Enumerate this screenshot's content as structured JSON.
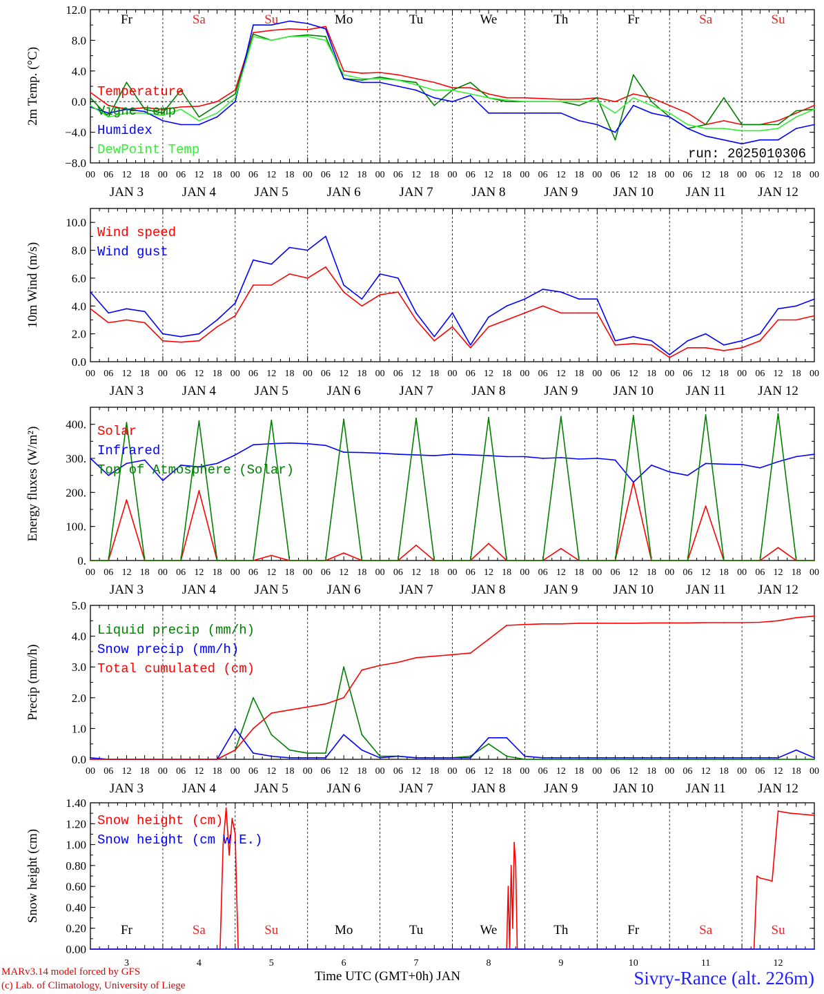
{
  "footer": {
    "model_line": "MARv3.14 model forced by GFS",
    "credit_line": "(c) Lab. of Climatology, University of Liege",
    "xlabel": "Time UTC (GMT+0h) JAN",
    "station": "Sivry-Rance (alt. 226m)"
  },
  "colors": {
    "red": "#ff0000",
    "green": "#008000",
    "blue": "#0000ff",
    "lightgreen": "#33ee33",
    "sat": "#ee2222",
    "sun": "#ee2222",
    "weekday": "#000000"
  },
  "chart_data": [
    {
      "type": "line",
      "ylabel": "2m Temp. (°C)",
      "ylim": [
        -8,
        12
      ],
      "yticks": [
        "12.0",
        "8.0",
        "4.0",
        "0.0",
        "−4.0",
        "−8.0"
      ],
      "ytick_values": [
        12,
        8,
        4,
        0,
        -4,
        -8
      ],
      "reference_line": 0,
      "day_labels": [
        "Fr",
        "Sa",
        "Su",
        "Mo",
        "Tu",
        "We",
        "Th",
        "Fr",
        "Sa",
        "Su"
      ],
      "date_labels": [
        "JAN  3",
        "JAN  4",
        "JAN  5",
        "JAN  6",
        "JAN  7",
        "JAN  8",
        "JAN  9",
        "JAN 10",
        "JAN 11",
        "JAN 12"
      ],
      "hour_labels": [
        "00",
        "06",
        "12",
        "18"
      ],
      "annotation": "run: 2025010306",
      "x_hours": [
        0,
        6,
        12,
        18,
        24,
        30,
        36,
        42,
        48,
        54,
        60,
        66,
        72,
        78,
        84,
        90,
        96,
        102,
        108,
        114,
        120,
        126,
        132,
        138,
        144,
        150,
        156,
        162,
        168,
        174,
        180,
        186,
        192,
        198,
        204,
        210,
        216,
        222,
        228,
        234,
        240
      ],
      "series": [
        {
          "name": "Temperature",
          "color": "red",
          "values": [
            1.2,
            -0.5,
            -1.0,
            -0.8,
            -1.0,
            -0.7,
            -0.6,
            0.0,
            1.5,
            9.0,
            9.3,
            9.5,
            9.4,
            9.8,
            4.0,
            3.7,
            3.8,
            3.5,
            3.0,
            2.5,
            1.8,
            1.8,
            1.0,
            0.5,
            0.5,
            0.4,
            0.3,
            0.3,
            0.5,
            0.0,
            1.0,
            0.5,
            -0.5,
            -1.5,
            -3.0,
            -2.5,
            -3.0,
            -3.0,
            -2.5,
            -1.5,
            -0.5
          ]
        },
        {
          "name": "Vigne temp",
          "color": "green",
          "values": [
            0.5,
            -2.0,
            2.5,
            -1.0,
            -1.5,
            1.5,
            -2.0,
            -0.5,
            1.0,
            8.8,
            8.0,
            8.5,
            8.7,
            8.5,
            3.0,
            2.8,
            3.2,
            2.8,
            2.5,
            -0.5,
            1.5,
            2.5,
            0.5,
            0.0,
            0.0,
            0.0,
            0.0,
            -0.5,
            0.5,
            -5.0,
            3.5,
            0.0,
            -2.0,
            -3.5,
            -3.0,
            0.5,
            -3.0,
            -3.0,
            -3.0,
            -1.2,
            -1.0
          ]
        },
        {
          "name": "Humidex",
          "color": "blue",
          "values": [
            -0.7,
            -1.5,
            -1.0,
            -1.3,
            -2.5,
            -3.0,
            -3.0,
            -2.0,
            0.0,
            10.0,
            10.0,
            10.5,
            10.2,
            9.5,
            3.0,
            2.5,
            2.5,
            2.0,
            1.5,
            0.5,
            0.0,
            0.8,
            -1.5,
            -1.5,
            -1.5,
            -1.5,
            -1.5,
            -2.5,
            -3.0,
            -4.0,
            -0.5,
            -1.5,
            -2.0,
            -3.5,
            -4.5,
            -5.0,
            -5.5,
            -5.0,
            -5.0,
            -3.5,
            -3.0
          ]
        },
        {
          "name": "DewPoint Temp",
          "color": "lightgreen",
          "values": [
            -0.5,
            -2.0,
            -1.5,
            -1.5,
            -1.8,
            -1.0,
            -2.5,
            -1.5,
            0.5,
            8.5,
            8.0,
            8.5,
            8.5,
            8.0,
            3.5,
            3.0,
            3.0,
            2.8,
            2.2,
            1.5,
            1.5,
            1.0,
            0.5,
            0.2,
            0.0,
            0.0,
            0.0,
            0.0,
            0.0,
            -1.5,
            0.5,
            -0.5,
            -1.5,
            -3.0,
            -3.5,
            -3.5,
            -3.8,
            -3.8,
            -3.5,
            -2.0,
            -1.0
          ]
        }
      ]
    },
    {
      "type": "line",
      "ylabel": "10m Wind (m/s)",
      "ylim": [
        0,
        11
      ],
      "yticks": [
        "10.0",
        "8.0",
        "6.0",
        "4.0",
        "2.0",
        "0.0"
      ],
      "ytick_values": [
        10,
        8,
        6,
        4,
        2,
        0
      ],
      "reference_line": 5,
      "date_labels": [
        "JAN  3",
        "JAN  4",
        "JAN  5",
        "JAN  6",
        "JAN  7",
        "JAN  8",
        "JAN  9",
        "JAN 10",
        "JAN 11",
        "JAN 12"
      ],
      "hour_labels": [
        "00",
        "06",
        "12",
        "18"
      ],
      "x_hours": [
        0,
        6,
        12,
        18,
        24,
        30,
        36,
        42,
        48,
        54,
        60,
        66,
        72,
        78,
        84,
        90,
        96,
        102,
        108,
        114,
        120,
        126,
        132,
        138,
        144,
        150,
        156,
        162,
        168,
        174,
        180,
        186,
        192,
        198,
        204,
        210,
        216,
        222,
        228,
        234,
        240
      ],
      "series": [
        {
          "name": "Wind speed",
          "color": "red",
          "values": [
            3.8,
            2.8,
            3.0,
            2.8,
            1.5,
            1.4,
            1.5,
            2.5,
            3.3,
            5.5,
            5.5,
            6.3,
            6.0,
            6.8,
            5.0,
            4.0,
            4.8,
            5.0,
            3.0,
            1.5,
            2.5,
            1.0,
            2.5,
            3.0,
            3.5,
            4.0,
            3.5,
            3.5,
            3.5,
            1.2,
            1.3,
            1.2,
            0.3,
            1.0,
            1.0,
            0.8,
            1.0,
            1.5,
            3.0,
            3.0,
            3.3
          ]
        },
        {
          "name": "Wind gust",
          "color": "blue",
          "values": [
            5.0,
            3.5,
            3.8,
            3.6,
            2.0,
            1.8,
            2.0,
            3.0,
            4.2,
            7.3,
            7.0,
            8.2,
            8.0,
            9.0,
            5.5,
            4.5,
            6.3,
            6.0,
            3.5,
            1.8,
            3.5,
            1.2,
            3.2,
            4.0,
            4.5,
            5.2,
            5.0,
            4.5,
            4.5,
            1.5,
            1.8,
            1.5,
            0.5,
            1.5,
            2.0,
            1.2,
            1.5,
            2.0,
            3.8,
            4.0,
            4.5
          ]
        }
      ]
    },
    {
      "type": "line",
      "ylabel": "Energy fluxes (W/m²)",
      "ylim": [
        0,
        450
      ],
      "yticks": [
        "400.",
        "300.",
        "200.",
        "100.",
        "0."
      ],
      "ytick_values": [
        400,
        300,
        200,
        100,
        0
      ],
      "date_labels": [
        "JAN  3",
        "JAN  4",
        "JAN  5",
        "JAN  6",
        "JAN  7",
        "JAN  8",
        "JAN  9",
        "JAN 10",
        "JAN 11",
        "JAN 12"
      ],
      "hour_labels": [
        "00",
        "06",
        "12",
        "18"
      ],
      "x_hours": [
        0,
        6,
        12,
        18,
        24,
        30,
        36,
        42,
        48,
        54,
        60,
        66,
        72,
        78,
        84,
        90,
        96,
        102,
        108,
        114,
        120,
        126,
        132,
        138,
        144,
        150,
        156,
        162,
        168,
        174,
        180,
        186,
        192,
        198,
        204,
        210,
        216,
        222,
        228,
        234,
        240
      ],
      "series": [
        {
          "name": "Solar",
          "color": "red",
          "values": [
            0,
            0,
            178,
            0,
            0,
            0,
            205,
            0,
            0,
            0,
            15,
            0,
            0,
            0,
            22,
            0,
            0,
            0,
            45,
            0,
            0,
            0,
            50,
            0,
            0,
            0,
            35,
            0,
            0,
            0,
            230,
            0,
            0,
            0,
            160,
            0,
            0,
            0,
            38,
            0,
            0
          ]
        },
        {
          "name": "Infrared",
          "color": "blue",
          "values": [
            300,
            250,
            285,
            295,
            235,
            280,
            275,
            285,
            310,
            340,
            343,
            345,
            343,
            338,
            318,
            317,
            315,
            312,
            310,
            308,
            312,
            310,
            308,
            305,
            305,
            300,
            302,
            298,
            300,
            295,
            230,
            280,
            260,
            250,
            285,
            283,
            282,
            272,
            290,
            305,
            312
          ]
        },
        {
          "name": "Top of Atmosphere (Solar)",
          "color": "green",
          "values": [
            0,
            0,
            405,
            0,
            0,
            0,
            410,
            0,
            0,
            0,
            412,
            0,
            0,
            0,
            415,
            0,
            0,
            0,
            418,
            0,
            0,
            0,
            420,
            0,
            0,
            0,
            423,
            0,
            0,
            0,
            426,
            0,
            0,
            0,
            428,
            0,
            0,
            0,
            431,
            0,
            0
          ]
        }
      ]
    },
    {
      "type": "line",
      "ylabel": "Precip (mm/h)",
      "ylim": [
        0,
        5
      ],
      "yticks": [
        "5.0",
        "4.0",
        "3.0",
        "2.0",
        "1.0",
        "0.0"
      ],
      "ytick_values": [
        5,
        4,
        3,
        2,
        1,
        0
      ],
      "date_labels": [
        "JAN  3",
        "JAN  4",
        "JAN  5",
        "JAN  6",
        "JAN  7",
        "JAN  8",
        "JAN  9",
        "JAN 10",
        "JAN 11",
        "JAN 12"
      ],
      "hour_labels": [
        "00",
        "06",
        "12",
        "18"
      ],
      "x_hours": [
        0,
        6,
        12,
        18,
        24,
        30,
        36,
        42,
        48,
        54,
        60,
        66,
        72,
        78,
        84,
        90,
        96,
        102,
        108,
        114,
        120,
        126,
        132,
        138,
        144,
        150,
        156,
        162,
        168,
        174,
        180,
        186,
        192,
        198,
        204,
        210,
        216,
        222,
        228,
        234,
        240
      ],
      "series": [
        {
          "name": "Liquid precip (mm/h)",
          "color": "green",
          "values": [
            0,
            0,
            0,
            0,
            0,
            0,
            0,
            0,
            0.3,
            2.0,
            0.8,
            0.3,
            0.2,
            0.2,
            3.0,
            0.8,
            0.1,
            0.1,
            0.05,
            0.05,
            0.05,
            0.1,
            0.5,
            0.1,
            0,
            0,
            0,
            0,
            0,
            0,
            0,
            0,
            0,
            0,
            0,
            0,
            0,
            0,
            0,
            0,
            0
          ]
        },
        {
          "name": "Snow precip (mm/h)",
          "color": "blue",
          "values": [
            0.05,
            0,
            0,
            0,
            0,
            0,
            0,
            0,
            1.0,
            0.2,
            0.1,
            0.05,
            0.05,
            0.05,
            0.8,
            0.3,
            0.05,
            0.1,
            0.05,
            0.05,
            0.05,
            0.05,
            0.7,
            0.7,
            0.1,
            0.05,
            0.05,
            0.05,
            0.05,
            0.05,
            0.05,
            0.05,
            0.05,
            0.05,
            0.05,
            0.05,
            0.05,
            0.05,
            0.05,
            0.3,
            0.05
          ]
        },
        {
          "name": "Total cumulated (cm)",
          "color": "red",
          "values": [
            0,
            0,
            0,
            0,
            0,
            0,
            0,
            0,
            0.3,
            1.0,
            1.5,
            1.6,
            1.7,
            1.8,
            2.0,
            2.9,
            3.05,
            3.15,
            3.3,
            3.35,
            3.4,
            3.45,
            3.9,
            4.35,
            4.38,
            4.4,
            4.4,
            4.42,
            4.42,
            4.42,
            4.42,
            4.43,
            4.43,
            4.43,
            4.44,
            4.44,
            4.44,
            4.45,
            4.5,
            4.6,
            4.65
          ]
        }
      ]
    },
    {
      "type": "line",
      "ylabel": "Snow height (cm)",
      "ylim": [
        0,
        1.4
      ],
      "yticks": [
        "1.40",
        "1.20",
        "1.00",
        "0.80",
        "0.60",
        "0.40",
        "0.20",
        "0.00"
      ],
      "ytick_values": [
        1.4,
        1.2,
        1.0,
        0.8,
        0.6,
        0.4,
        0.2,
        0.0
      ],
      "day_labels": [
        "Fr",
        "Sa",
        "Su",
        "Mo",
        "Tu",
        "We",
        "Th",
        "Fr",
        "Sa",
        "Su"
      ],
      "date_numbers": [
        "3",
        "4",
        "5",
        "6",
        "7",
        "8",
        "9",
        "10",
        "11",
        "12"
      ],
      "x_hours": [
        0,
        43,
        44,
        45,
        46,
        47,
        48,
        48.5,
        49,
        49.5,
        50,
        51,
        52,
        96,
        138,
        138.5,
        139,
        139.5,
        140,
        140.5,
        141,
        141.5,
        142,
        142.5,
        143,
        143.5,
        144,
        180,
        220,
        221,
        222,
        225,
        226,
        228,
        232,
        240
      ],
      "series": [
        {
          "name": "Snow height (cm)",
          "color": "red",
          "values": [
            0,
            0,
            1.0,
            1.35,
            0.9,
            1.25,
            1.1,
            0.5,
            0,
            0,
            0,
            0,
            0,
            0,
            0,
            0.6,
            0,
            0.8,
            0.2,
            1.02,
            0.8,
            0,
            0,
            0,
            0,
            0,
            0,
            0,
            0,
            0.7,
            0.68,
            0.66,
            0.65,
            1.32,
            1.3,
            1.28
          ]
        },
        {
          "name": "Snow height (cm W.E.)",
          "color": "blue",
          "values": [
            0,
            0,
            0,
            0,
            0,
            0,
            0,
            0,
            0,
            0,
            0,
            0,
            0,
            0,
            0,
            0,
            0,
            0,
            0,
            0,
            0,
            0,
            0,
            0,
            0,
            0,
            0,
            0,
            0,
            0,
            0,
            0,
            0,
            0,
            0,
            0
          ]
        }
      ]
    }
  ]
}
